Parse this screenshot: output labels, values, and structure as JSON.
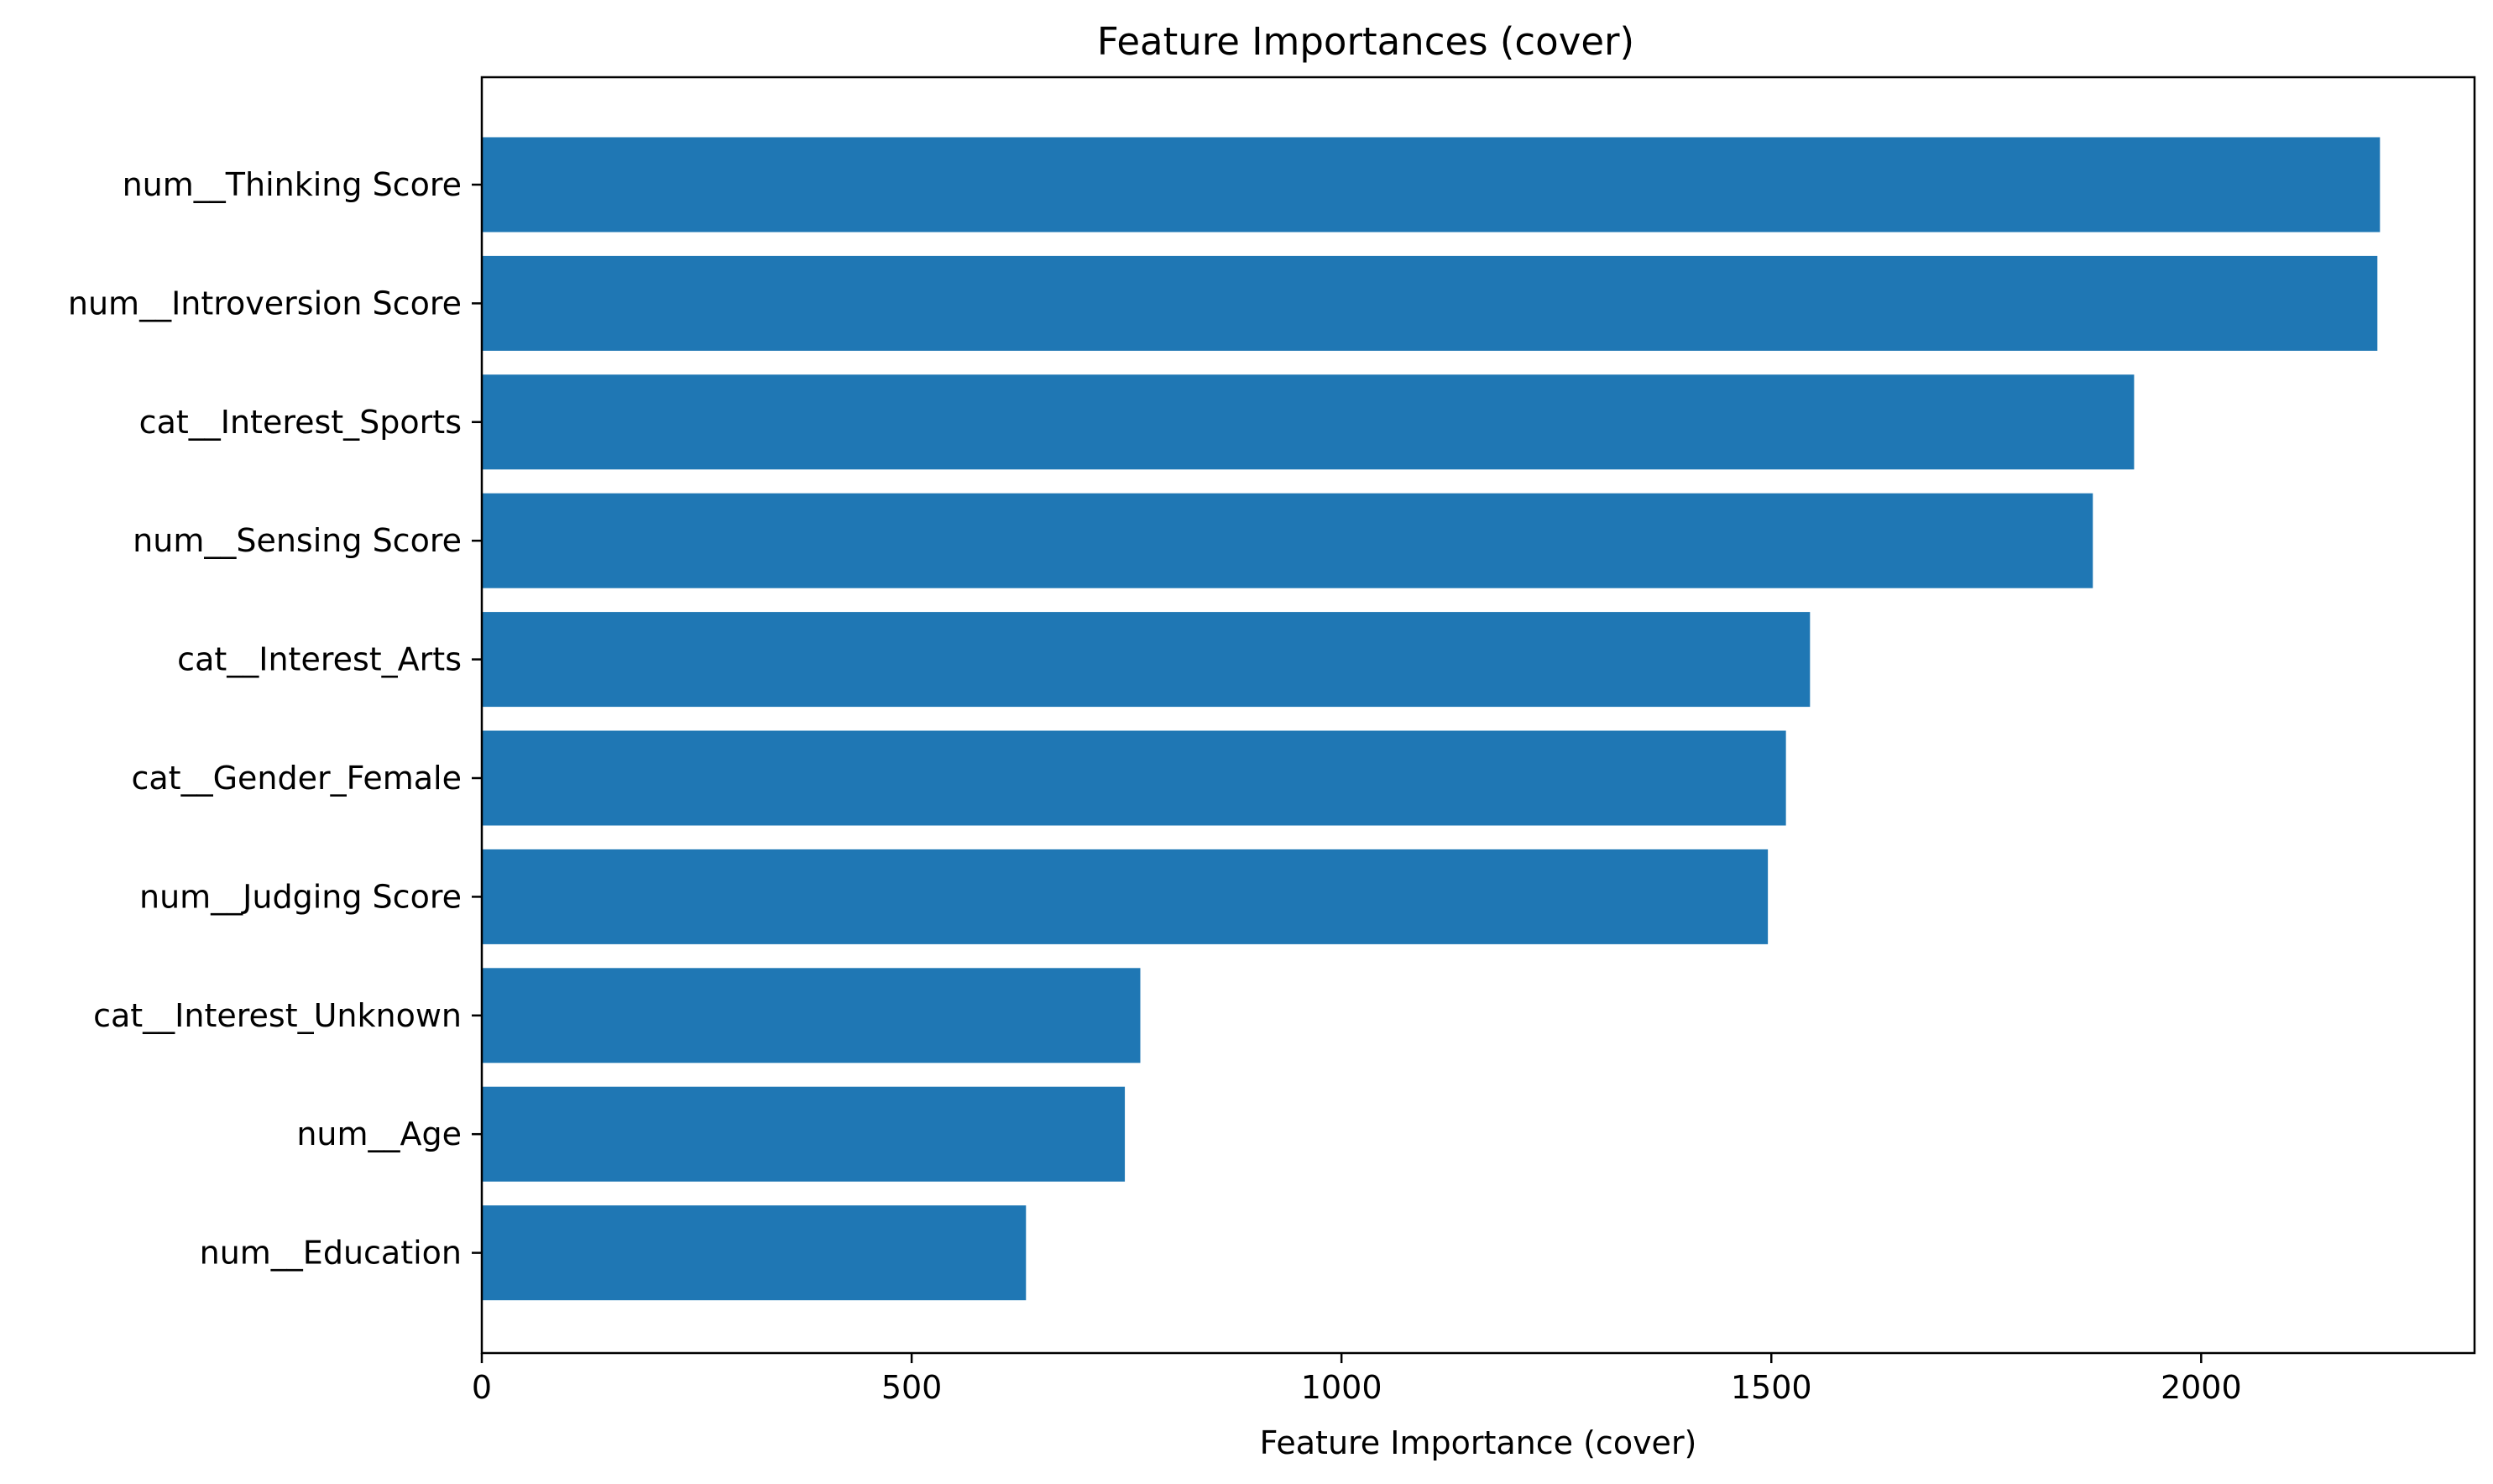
{
  "chart_data": {
    "type": "bar",
    "orientation": "horizontal",
    "title": "Feature Importances (cover)",
    "xlabel": "Feature Importance (cover)",
    "ylabel": "",
    "categories": [
      "num__Thinking Score",
      "num__Introversion Score",
      "cat__Interest_Sports",
      "num__Sensing Score",
      "cat__Interest_Arts",
      "cat__Gender_Female",
      "num__Judging Score",
      "cat__Interest_Unknown",
      "num__Age",
      "num__Education"
    ],
    "values": [
      2208,
      2205,
      1922,
      1874,
      1545,
      1517,
      1496,
      766,
      748,
      633
    ],
    "xlim": [
      0,
      2318
    ],
    "xticks": [
      0,
      500,
      1000,
      1500,
      2000
    ],
    "xtick_labels": [
      "0",
      "500",
      "1000",
      "1500",
      "2000"
    ],
    "grid": false,
    "bar_color": "#1f77b4"
  }
}
